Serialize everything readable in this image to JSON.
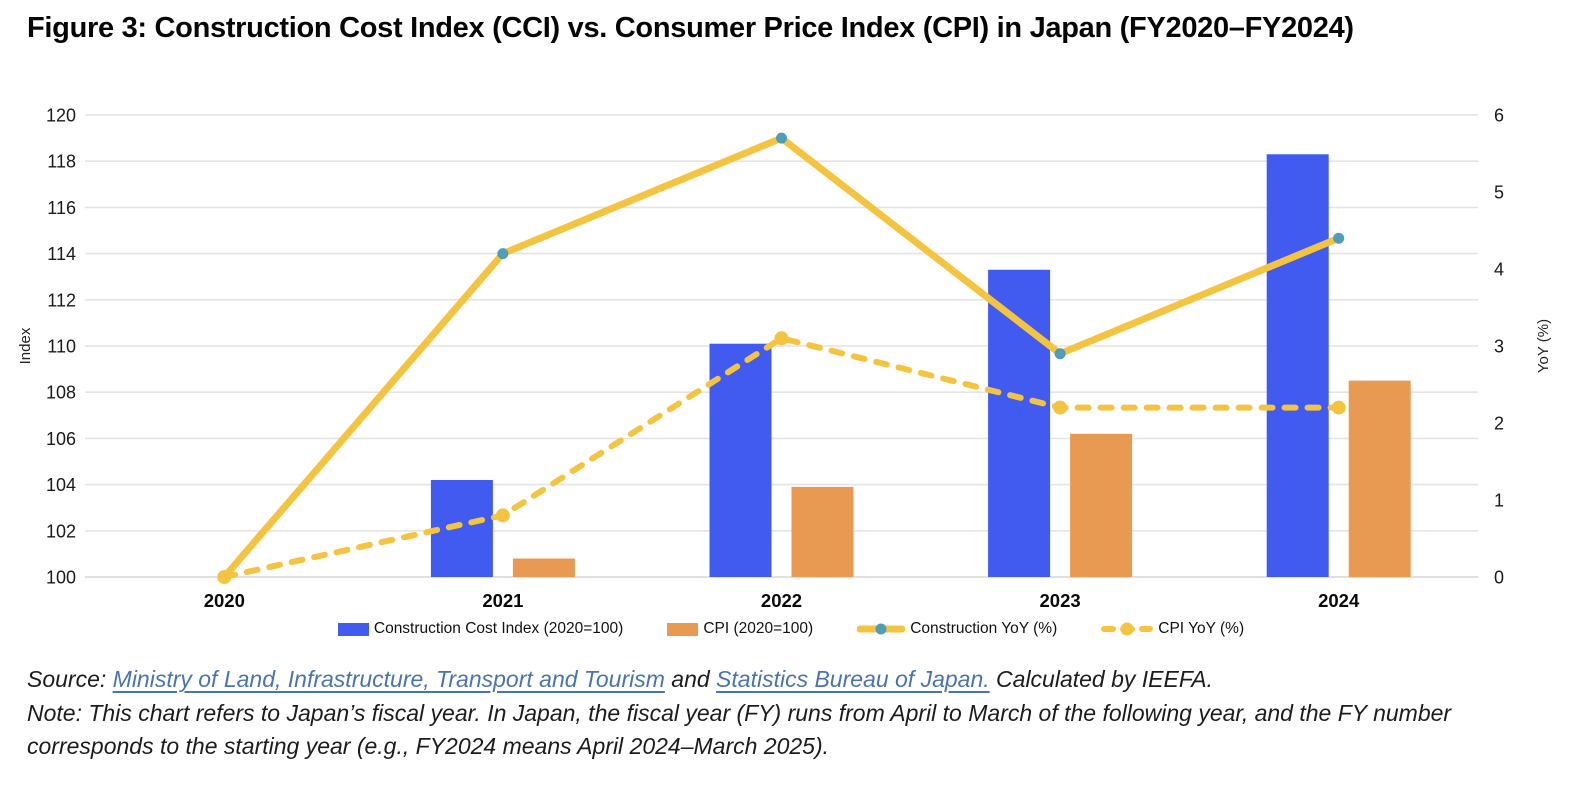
{
  "figure": {
    "title": "Figure 3: Construction Cost Index (CCI) vs. Consumer Price Index (CPI) in Japan (FY2020–FY2024)"
  },
  "chart_data": {
    "type": "bar",
    "subtype": "combo-bar-line-dual-axis",
    "categories": [
      "2020",
      "2021",
      "2022",
      "2023",
      "2024"
    ],
    "series": [
      {
        "name": "Construction Cost Index (2020=100)",
        "type": "bar",
        "axis": "left",
        "color": "#415af0",
        "values": [
          100,
          104.2,
          110.1,
          113.3,
          118.3
        ]
      },
      {
        "name": "CPI (2020=100)",
        "type": "bar",
        "axis": "left",
        "color": "#e99a52",
        "values": [
          100,
          100.8,
          103.9,
          106.2,
          108.5
        ]
      },
      {
        "name": "Construction YoY (%)",
        "type": "line",
        "style": "solid",
        "axis": "right",
        "color": "#f4c440",
        "marker_color": "#4f9db8",
        "values": [
          0,
          4.2,
          5.7,
          2.9,
          4.4
        ]
      },
      {
        "name": "CPI YoY (%)",
        "type": "line",
        "style": "dashed",
        "axis": "right",
        "color": "#f4c440",
        "marker_color": "#f4c440",
        "values": [
          0,
          0.8,
          3.1,
          2.2,
          2.2
        ]
      }
    ],
    "left_axis": {
      "label": "Index",
      "min": 100,
      "max": 120,
      "step": 2
    },
    "right_axis": {
      "label": "YoY (%)",
      "min": 0,
      "max": 6,
      "step": 1
    },
    "grid": true,
    "legend_position": "bottom",
    "colors": {
      "gridline": "#e4e4e4",
      "baseline": "#d6d6d6",
      "tick_text": "#1a1a1a",
      "xlabel_text": "#0a0a0a"
    }
  },
  "footer": {
    "source_prefix": "Source: ",
    "source_link_1": "Ministry of Land, Infrastructure, Transport and Tourism",
    "source_mid": " and ",
    "source_link_2": "Statistics Bureau of Japan.",
    "source_suffix": " Calculated by IEEFA.",
    "note": "Note: This chart refers to Japan’s fiscal year. In Japan, the fiscal year (FY) runs from April to March of the following year, and the FY number corresponds to the starting year (e.g., FY2024 means April 2024–March 2025)."
  }
}
